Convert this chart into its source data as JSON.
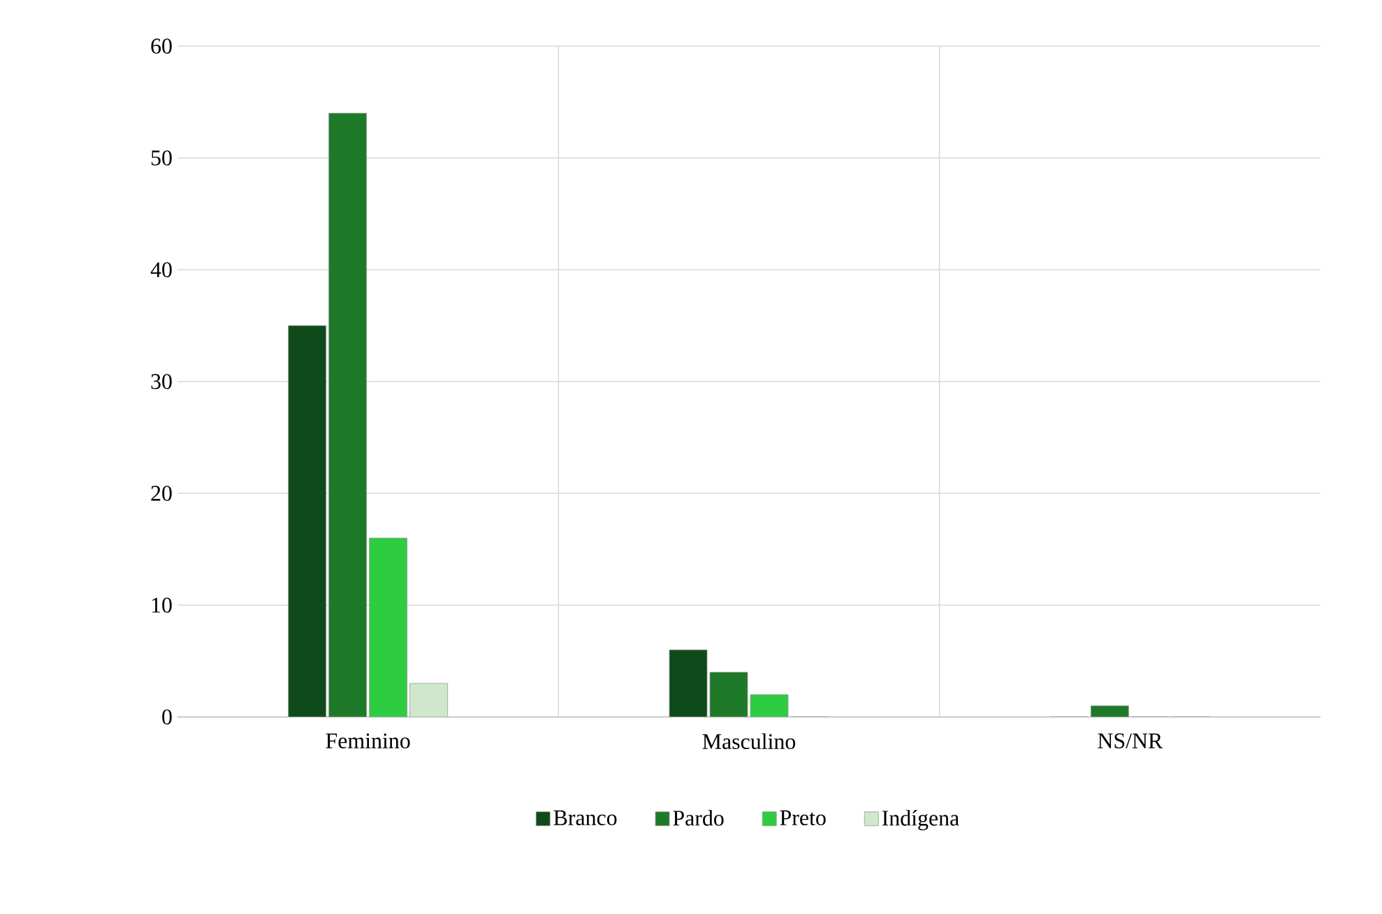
{
  "chart_data": {
    "type": "bar",
    "categories": [
      "Feminino",
      "Masculino",
      "NS/NR"
    ],
    "series": [
      {
        "name": "Branco",
        "color": "#0f4a1a",
        "values": [
          35,
          6,
          0
        ]
      },
      {
        "name": "Pardo",
        "color": "#1e7a28",
        "values": [
          54,
          4,
          1
        ]
      },
      {
        "name": "Preto",
        "color": "#2ecc40",
        "values": [
          16,
          2,
          0
        ]
      },
      {
        "name": "Indígena",
        "color": "#cfe8cc",
        "values": [
          3,
          0,
          0
        ]
      }
    ],
    "ylim": [
      0,
      60
    ],
    "yticks": [
      0,
      10,
      20,
      30,
      40,
      50,
      60
    ],
    "grid": true,
    "legend": "bottom"
  }
}
